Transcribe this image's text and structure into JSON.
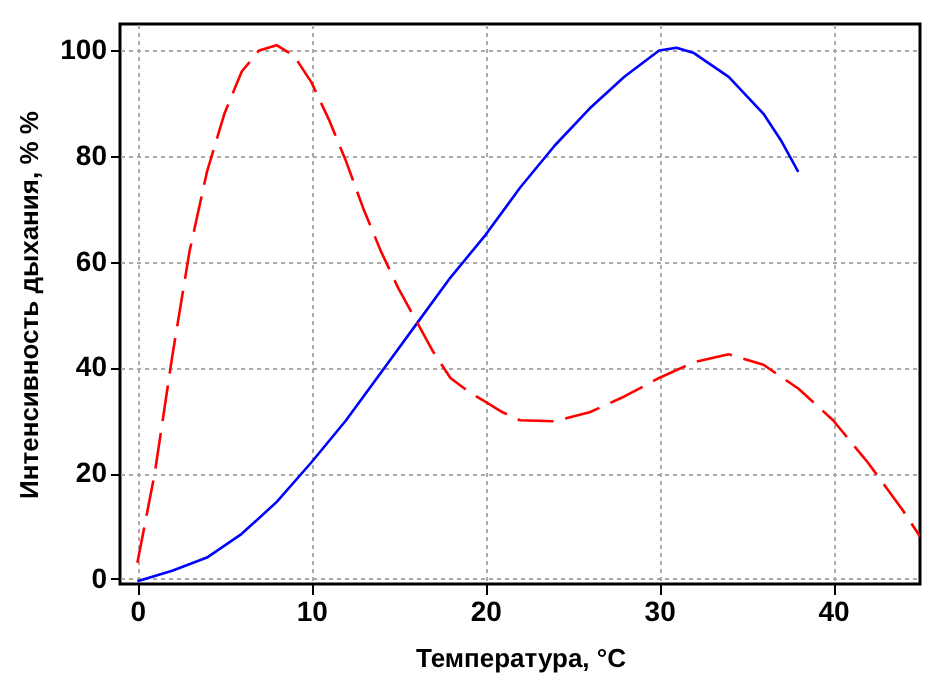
{
  "chart_data": {
    "type": "line",
    "xlabel": "Температура,  °C",
    "ylabel": "Интенсивность дыхания, % %",
    "xlim": [
      -1,
      45
    ],
    "ylim": [
      -1,
      105
    ],
    "xticks": [
      0,
      10,
      20,
      30,
      40
    ],
    "yticks": [
      0,
      20,
      40,
      60,
      80,
      100
    ],
    "grid": true,
    "series": [
      {
        "color": "#0000ff",
        "line_style": "solid",
        "x": [
          0,
          2,
          4,
          6,
          8,
          10,
          12,
          14,
          16,
          18,
          20,
          22,
          24,
          26,
          28,
          30,
          31,
          32,
          34,
          36,
          37,
          38
        ],
        "values": [
          -0.5,
          1.5,
          4,
          8.5,
          14.5,
          22,
          30,
          39,
          48,
          57,
          65,
          74,
          82,
          89,
          95,
          100,
          100.5,
          99.5,
          95,
          88,
          83,
          77
        ]
      },
      {
        "color": "#ff0000",
        "line_style": "dashed",
        "x": [
          0,
          1,
          2,
          3,
          4,
          5,
          6,
          7,
          8,
          9,
          10,
          11,
          12,
          13,
          14,
          15,
          16,
          17,
          18,
          19,
          20,
          21,
          22,
          24,
          26,
          28,
          30,
          32,
          34,
          36,
          38,
          40,
          42,
          44,
          45
        ],
        "values": [
          3,
          20,
          42,
          62,
          77,
          88,
          96,
          100,
          101,
          99,
          94,
          87,
          79,
          70,
          62,
          55,
          49,
          43,
          38,
          35.5,
          33.5,
          31.5,
          30,
          29.8,
          31.5,
          34.5,
          38,
          41,
          42.5,
          40.5,
          36,
          30,
          22,
          13,
          8
        ]
      }
    ]
  }
}
